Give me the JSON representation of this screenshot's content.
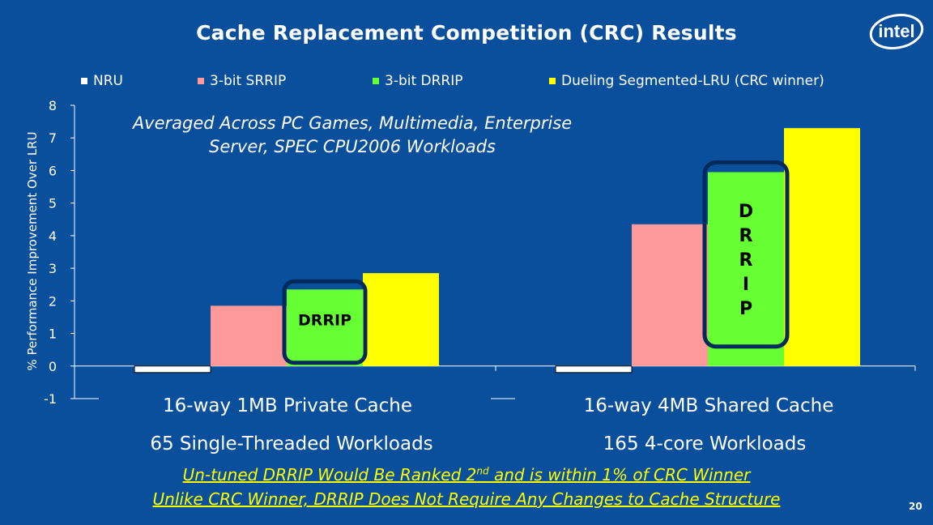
{
  "title": "Cache Replacement Competition (CRC) Results",
  "logo_text": "intel",
  "page_number": "20",
  "note": {
    "line1": "Averaged Across PC Games, Multimedia, Enterprise",
    "line2": "Server, SPEC CPU2006 Workloads"
  },
  "groups": [
    {
      "line1": "16-way 1MB Private Cache",
      "line2": "65 Single-Threaded Workloads"
    },
    {
      "line1": "16-way 4MB Shared Cache",
      "line2": "165 4-core Workloads"
    }
  ],
  "footer": {
    "line1_before": "Un-tuned DRRIP Would Be Ranked 2",
    "line1_sup": "nd",
    "line1_after": " and is within 1% of CRC Winner",
    "line2": "Unlike CRC Winner, DRRIP Does Not Require Any Changes to Cache Structure"
  },
  "callouts": {
    "group1": "DRRIP",
    "group2": [
      "D",
      "R",
      "R",
      "I",
      "P"
    ]
  },
  "chart_data": {
    "type": "bar",
    "title": "Cache Replacement Competition (CRC) Results",
    "ylabel": "% Performance Improvement Over LRU",
    "xlabel": "",
    "ylim": [
      -1,
      8
    ],
    "yticks": [
      "8",
      "7",
      "6",
      "5",
      "4",
      "3",
      "2",
      "1",
      "0",
      "-1"
    ],
    "categories": [
      "16-way 1MB Private Cache",
      "16-way 4MB Shared Cache"
    ],
    "legend_position": "top",
    "series": [
      {
        "name": "NRU",
        "color": "#ffffff",
        "values": [
          -0.2,
          -0.2
        ]
      },
      {
        "name": "3-bit SRRIP",
        "color": "#ff9999",
        "values": [
          1.85,
          4.35
        ]
      },
      {
        "name": "3-bit DRRIP",
        "color": "#66ff33",
        "values": [
          2.35,
          5.95
        ]
      },
      {
        "name": "Dueling Segmented-LRU (CRC winner)",
        "color": "#ffff00",
        "values": [
          2.85,
          7.3
        ]
      }
    ]
  }
}
